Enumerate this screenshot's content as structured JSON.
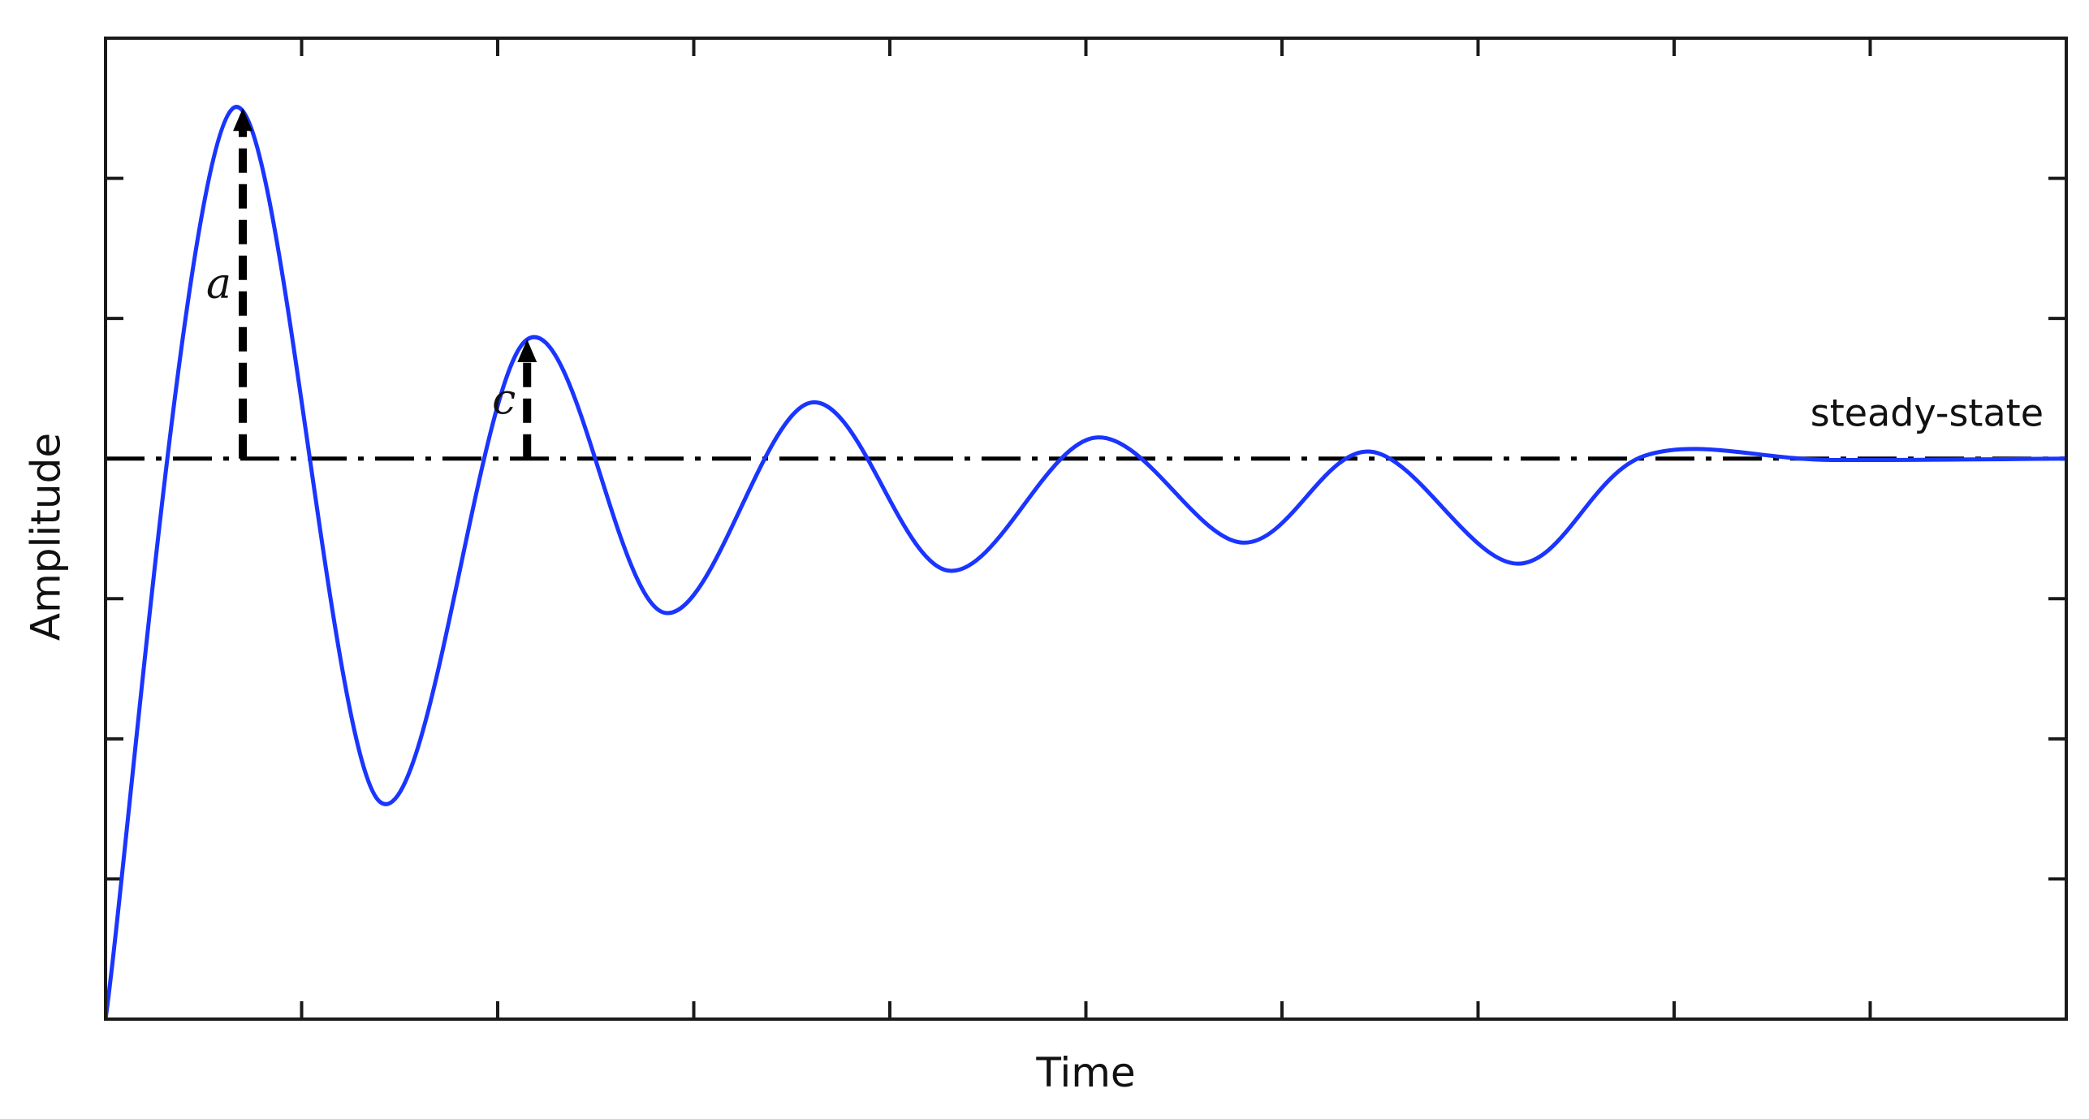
{
  "chart_data": {
    "type": "line",
    "title": "",
    "xlabel": "Time",
    "ylabel": "Amplitude",
    "xlim": [
      0,
      10
    ],
    "ylim": [
      0,
      1.4
    ],
    "x_tick_count": 10,
    "y_tick_count": 7,
    "tick_labels_shown": false,
    "grid": false,
    "legend": "none",
    "series": [
      {
        "style": "solid",
        "color": "#1a35ff",
        "x": [
          0,
          0.65,
          1.4,
          2.15,
          2.85,
          3.6,
          4.3,
          5.05,
          5.8,
          6.45,
          7.2,
          7.85,
          8.8,
          10
        ],
        "y": [
          0,
          1.3,
          0.31,
          0.97,
          0.58,
          0.88,
          0.64,
          0.83,
          0.68,
          0.81,
          0.65,
          0.804,
          0.798,
          0.8
        ]
      }
    ],
    "reference_lines": [
      {
        "label": "steady-state",
        "y": 0.8,
        "style": "dash-dot",
        "color": "#000000"
      }
    ],
    "annotations": [
      {
        "label": "a",
        "x": 0.7,
        "y_from": 0.8,
        "y_to": 1.3,
        "style": "dashed-arrow"
      },
      {
        "label": "c",
        "x": 2.15,
        "y_from": 0.8,
        "y_to": 0.97,
        "style": "dashed-arrow"
      }
    ]
  },
  "colors": {
    "curve": "#1a35ff",
    "axes": "#1a1a1a",
    "reference": "#000000",
    "background": "#ffffff"
  }
}
